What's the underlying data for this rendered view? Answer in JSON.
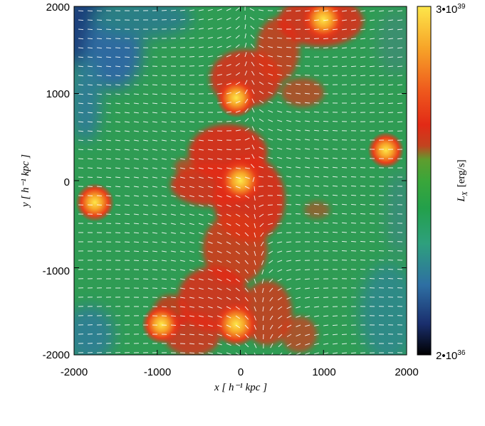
{
  "chart_data": {
    "type": "heatmap",
    "title": "",
    "xlabel": "x [ h⁻¹ kpc ]",
    "ylabel": "y [ h⁻¹ kpc ]",
    "xlim": [
      -2000,
      2000
    ],
    "ylim": [
      -2000,
      2000
    ],
    "x_ticks": [
      "-2000",
      "-1000",
      "0",
      "1000",
      "2000"
    ],
    "y_ticks": [
      "-2000",
      "-1000",
      "0",
      "1000",
      "2000"
    ],
    "x_tick_values": [
      -2000,
      -1000,
      0,
      1000,
      2000
    ],
    "y_tick_values": [
      -2000,
      -1000,
      0,
      1000,
      2000
    ],
    "colorbar": {
      "label": "L_X [erg/s]",
      "label_main": "L",
      "label_sub": "X",
      "label_unit": "[erg/s]",
      "max_label": "3•10^39",
      "max_mantissa": "3•10",
      "max_exponent": "39",
      "min_label": "2•10^36",
      "min_mantissa": "2•10",
      "min_exponent": "36",
      "min_value": 2e+36,
      "max_value": 3e+39,
      "scale": "log",
      "colors": [
        "#000000",
        "#1a2f6e",
        "#2e6fa3",
        "#2ea07d",
        "#23a04b",
        "#3aa63a",
        "#5e9d2e",
        "#c2431f",
        "#e22a16",
        "#ef5a1d",
        "#f7a428",
        "#fde64a"
      ]
    },
    "background_color": "#2f9c54",
    "bright_sources": [
      {
        "x": 1000,
        "y": 1850,
        "level": 0.95
      },
      {
        "x": 0,
        "y": 0,
        "level": 0.97
      },
      {
        "x": -50,
        "y": -1650,
        "level": 0.98
      },
      {
        "x": -950,
        "y": -1650,
        "level": 0.8
      },
      {
        "x": -1750,
        "y": -250,
        "level": 0.78
      },
      {
        "x": -50,
        "y": 950,
        "level": 0.82
      },
      {
        "x": 1750,
        "y": 350,
        "level": 0.7
      }
    ],
    "vector_field": {
      "shown": true,
      "color": "#ffffff",
      "description": "velocity arrows"
    }
  }
}
